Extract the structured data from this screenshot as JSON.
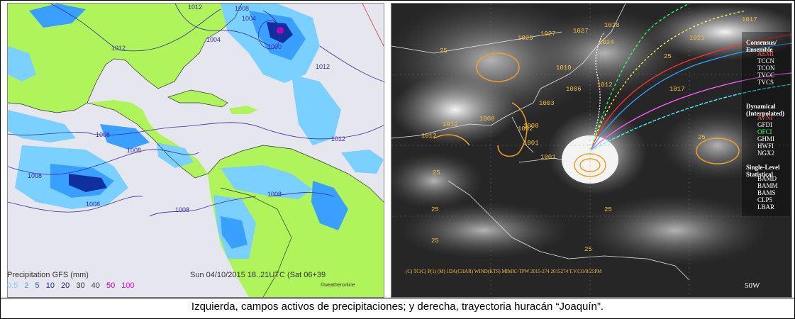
{
  "left_map": {
    "legend_title": "Precipitation GFS (mm)",
    "legend_values": [
      "0.5",
      "2",
      "5",
      "10",
      "20",
      "30",
      "40",
      "50",
      "100"
    ],
    "legend_colors": [
      "#7ad0ff",
      "#39a0ff",
      "#1662d6",
      "#1030a0",
      "#1a1a70",
      "#333333",
      "#444444",
      "#c000c0",
      "#ff00ff"
    ],
    "date_text": "Sun 04/10/2015 18..21UTC",
    "date_suffix": "(Sat 06+39",
    "source": "©weatheronline",
    "isobars": [
      "1012",
      "1004",
      "1008",
      "1012",
      "1004",
      "1000",
      "1012",
      "1008",
      "1008",
      "1008",
      "1012",
      "1008",
      "1008",
      "1008"
    ]
  },
  "right_sat": {
    "pressures": [
      "1010",
      "1027",
      "1028",
      "1025",
      "1027",
      "1024",
      "1017",
      "1006",
      "1012",
      "1008",
      "1008",
      "1012",
      "1002",
      "1001",
      "1001",
      "1012",
      "1017",
      "1021",
      "1003"
    ],
    "labels_25": [
      "25",
      "25",
      "25",
      "25",
      "25",
      "25",
      "25",
      "25"
    ],
    "consensus_title": "Consensus/ Ensemble",
    "consensus_items": [
      "AEMI",
      "TCCN",
      "TCON",
      "TVCC",
      "TVCS"
    ],
    "dynamical_title": "Dynamical (Interpolated)",
    "dynamical_items": [
      "AVNI",
      "GFDI",
      "OFCI",
      "GHMI",
      "HWFI",
      "NGX2"
    ],
    "statistical_title": "Single-Level Statistical",
    "statistical_items": [
      "BAMD",
      "BAMM",
      "BAMS",
      "CLP5",
      "LBAR"
    ],
    "lon_label": "50W",
    "footer": "(C) TC(C) P(1) (M) 1DA(CHAR) WIND(KTS) MIMIC-TPW 2015-274 2015274 T.V.CO/8/25PM"
  },
  "caption": "Izquierda, campos activos de precipitaciones; y derecha, trayectoria huracán “Joaquín”."
}
